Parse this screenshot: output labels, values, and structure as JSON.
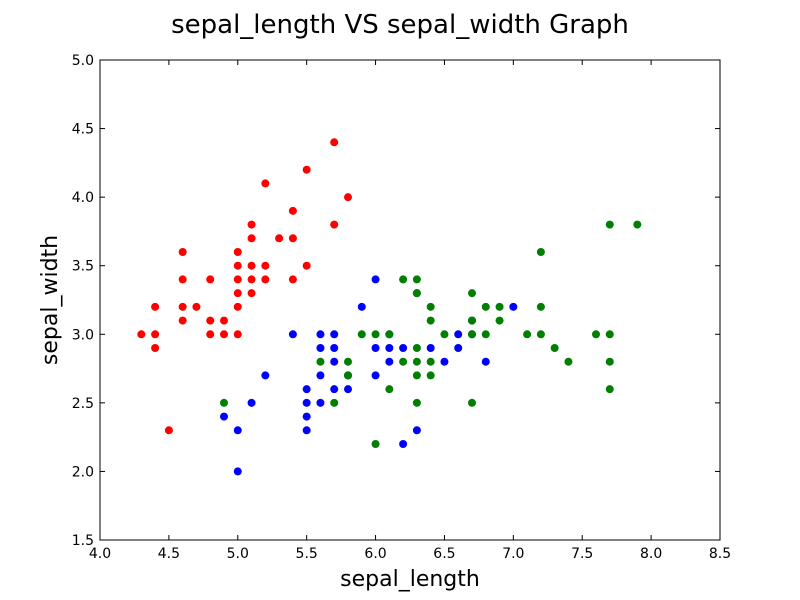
{
  "chart_data": {
    "type": "scatter",
    "title": "sepal_length VS sepal_width Graph",
    "xlabel": "sepal_length",
    "ylabel": "sepal_width",
    "xlim": [
      4.0,
      8.5
    ],
    "ylim": [
      1.5,
      5.0
    ],
    "xticks": [
      "4.0",
      "4.5",
      "5.0",
      "5.5",
      "6.0",
      "6.5",
      "7.0",
      "7.5",
      "8.0",
      "8.5"
    ],
    "yticks": [
      "1.5",
      "2.0",
      "2.5",
      "3.0",
      "3.5",
      "4.0",
      "4.5",
      "5.0"
    ],
    "grid": false,
    "legend": "none",
    "series": [
      {
        "color": "#ff0000",
        "points": [
          [
            4.3,
            3.0
          ],
          [
            4.4,
            3.2
          ],
          [
            4.4,
            3.0
          ],
          [
            4.4,
            2.9
          ],
          [
            4.5,
            2.3
          ],
          [
            4.6,
            3.6
          ],
          [
            4.6,
            3.4
          ],
          [
            4.6,
            3.2
          ],
          [
            4.6,
            3.1
          ],
          [
            4.7,
            3.2
          ],
          [
            4.8,
            3.4
          ],
          [
            4.8,
            3.1
          ],
          [
            4.8,
            3.0
          ],
          [
            4.9,
            3.1
          ],
          [
            4.9,
            3.0
          ],
          [
            5.0,
            3.6
          ],
          [
            5.0,
            3.5
          ],
          [
            5.0,
            3.4
          ],
          [
            5.0,
            3.3
          ],
          [
            5.0,
            3.2
          ],
          [
            5.0,
            3.0
          ],
          [
            5.1,
            3.8
          ],
          [
            5.1,
            3.7
          ],
          [
            5.1,
            3.5
          ],
          [
            5.1,
            3.4
          ],
          [
            5.1,
            3.3
          ],
          [
            5.2,
            4.1
          ],
          [
            5.2,
            3.5
          ],
          [
            5.2,
            3.4
          ],
          [
            5.3,
            3.7
          ],
          [
            5.4,
            3.9
          ],
          [
            5.4,
            3.7
          ],
          [
            5.4,
            3.4
          ],
          [
            5.5,
            4.2
          ],
          [
            5.5,
            3.5
          ],
          [
            5.7,
            4.4
          ],
          [
            5.7,
            3.8
          ],
          [
            5.8,
            4.0
          ]
        ]
      },
      {
        "color": "#0000ff",
        "points": [
          [
            4.9,
            2.4
          ],
          [
            5.0,
            2.3
          ],
          [
            5.0,
            2.0
          ],
          [
            5.1,
            2.5
          ],
          [
            5.2,
            2.7
          ],
          [
            5.4,
            3.0
          ],
          [
            5.5,
            2.6
          ],
          [
            5.5,
            2.5
          ],
          [
            5.5,
            2.4
          ],
          [
            5.5,
            2.3
          ],
          [
            5.6,
            3.0
          ],
          [
            5.6,
            2.9
          ],
          [
            5.6,
            2.7
          ],
          [
            5.6,
            2.5
          ],
          [
            5.7,
            3.0
          ],
          [
            5.7,
            2.9
          ],
          [
            5.7,
            2.8
          ],
          [
            5.7,
            2.6
          ],
          [
            5.8,
            2.7
          ],
          [
            5.8,
            2.6
          ],
          [
            5.9,
            3.2
          ],
          [
            6.0,
            3.4
          ],
          [
            6.0,
            2.9
          ],
          [
            6.0,
            2.7
          ],
          [
            6.1,
            3.0
          ],
          [
            6.1,
            2.9
          ],
          [
            6.1,
            2.8
          ],
          [
            6.2,
            2.9
          ],
          [
            6.2,
            2.2
          ],
          [
            6.3,
            3.3
          ],
          [
            6.3,
            2.3
          ],
          [
            6.4,
            2.9
          ],
          [
            6.5,
            2.8
          ],
          [
            6.6,
            3.0
          ],
          [
            6.6,
            2.9
          ],
          [
            6.7,
            3.1
          ],
          [
            6.7,
            3.0
          ],
          [
            6.8,
            2.8
          ],
          [
            7.0,
            3.2
          ]
        ]
      },
      {
        "color": "#007f00",
        "points": [
          [
            4.9,
            2.5
          ],
          [
            5.6,
            2.8
          ],
          [
            5.7,
            2.5
          ],
          [
            5.8,
            2.8
          ],
          [
            5.8,
            2.7
          ],
          [
            5.9,
            3.0
          ],
          [
            6.0,
            3.0
          ],
          [
            6.0,
            2.2
          ],
          [
            6.1,
            3.0
          ],
          [
            6.1,
            2.6
          ],
          [
            6.2,
            3.4
          ],
          [
            6.2,
            2.8
          ],
          [
            6.3,
            3.4
          ],
          [
            6.3,
            3.3
          ],
          [
            6.3,
            2.9
          ],
          [
            6.3,
            2.8
          ],
          [
            6.3,
            2.7
          ],
          [
            6.3,
            2.5
          ],
          [
            6.4,
            3.2
          ],
          [
            6.4,
            3.1
          ],
          [
            6.4,
            2.8
          ],
          [
            6.4,
            2.7
          ],
          [
            6.5,
            3.0
          ],
          [
            6.7,
            3.3
          ],
          [
            6.7,
            3.1
          ],
          [
            6.7,
            3.0
          ],
          [
            6.7,
            2.5
          ],
          [
            6.8,
            3.2
          ],
          [
            6.8,
            3.0
          ],
          [
            6.9,
            3.2
          ],
          [
            6.9,
            3.1
          ],
          [
            7.1,
            3.0
          ],
          [
            7.2,
            3.6
          ],
          [
            7.2,
            3.2
          ],
          [
            7.2,
            3.0
          ],
          [
            7.3,
            2.9
          ],
          [
            7.4,
            2.8
          ],
          [
            7.6,
            3.0
          ],
          [
            7.7,
            3.8
          ],
          [
            7.7,
            3.0
          ],
          [
            7.7,
            2.8
          ],
          [
            7.7,
            2.6
          ],
          [
            7.9,
            3.8
          ]
        ]
      }
    ]
  }
}
